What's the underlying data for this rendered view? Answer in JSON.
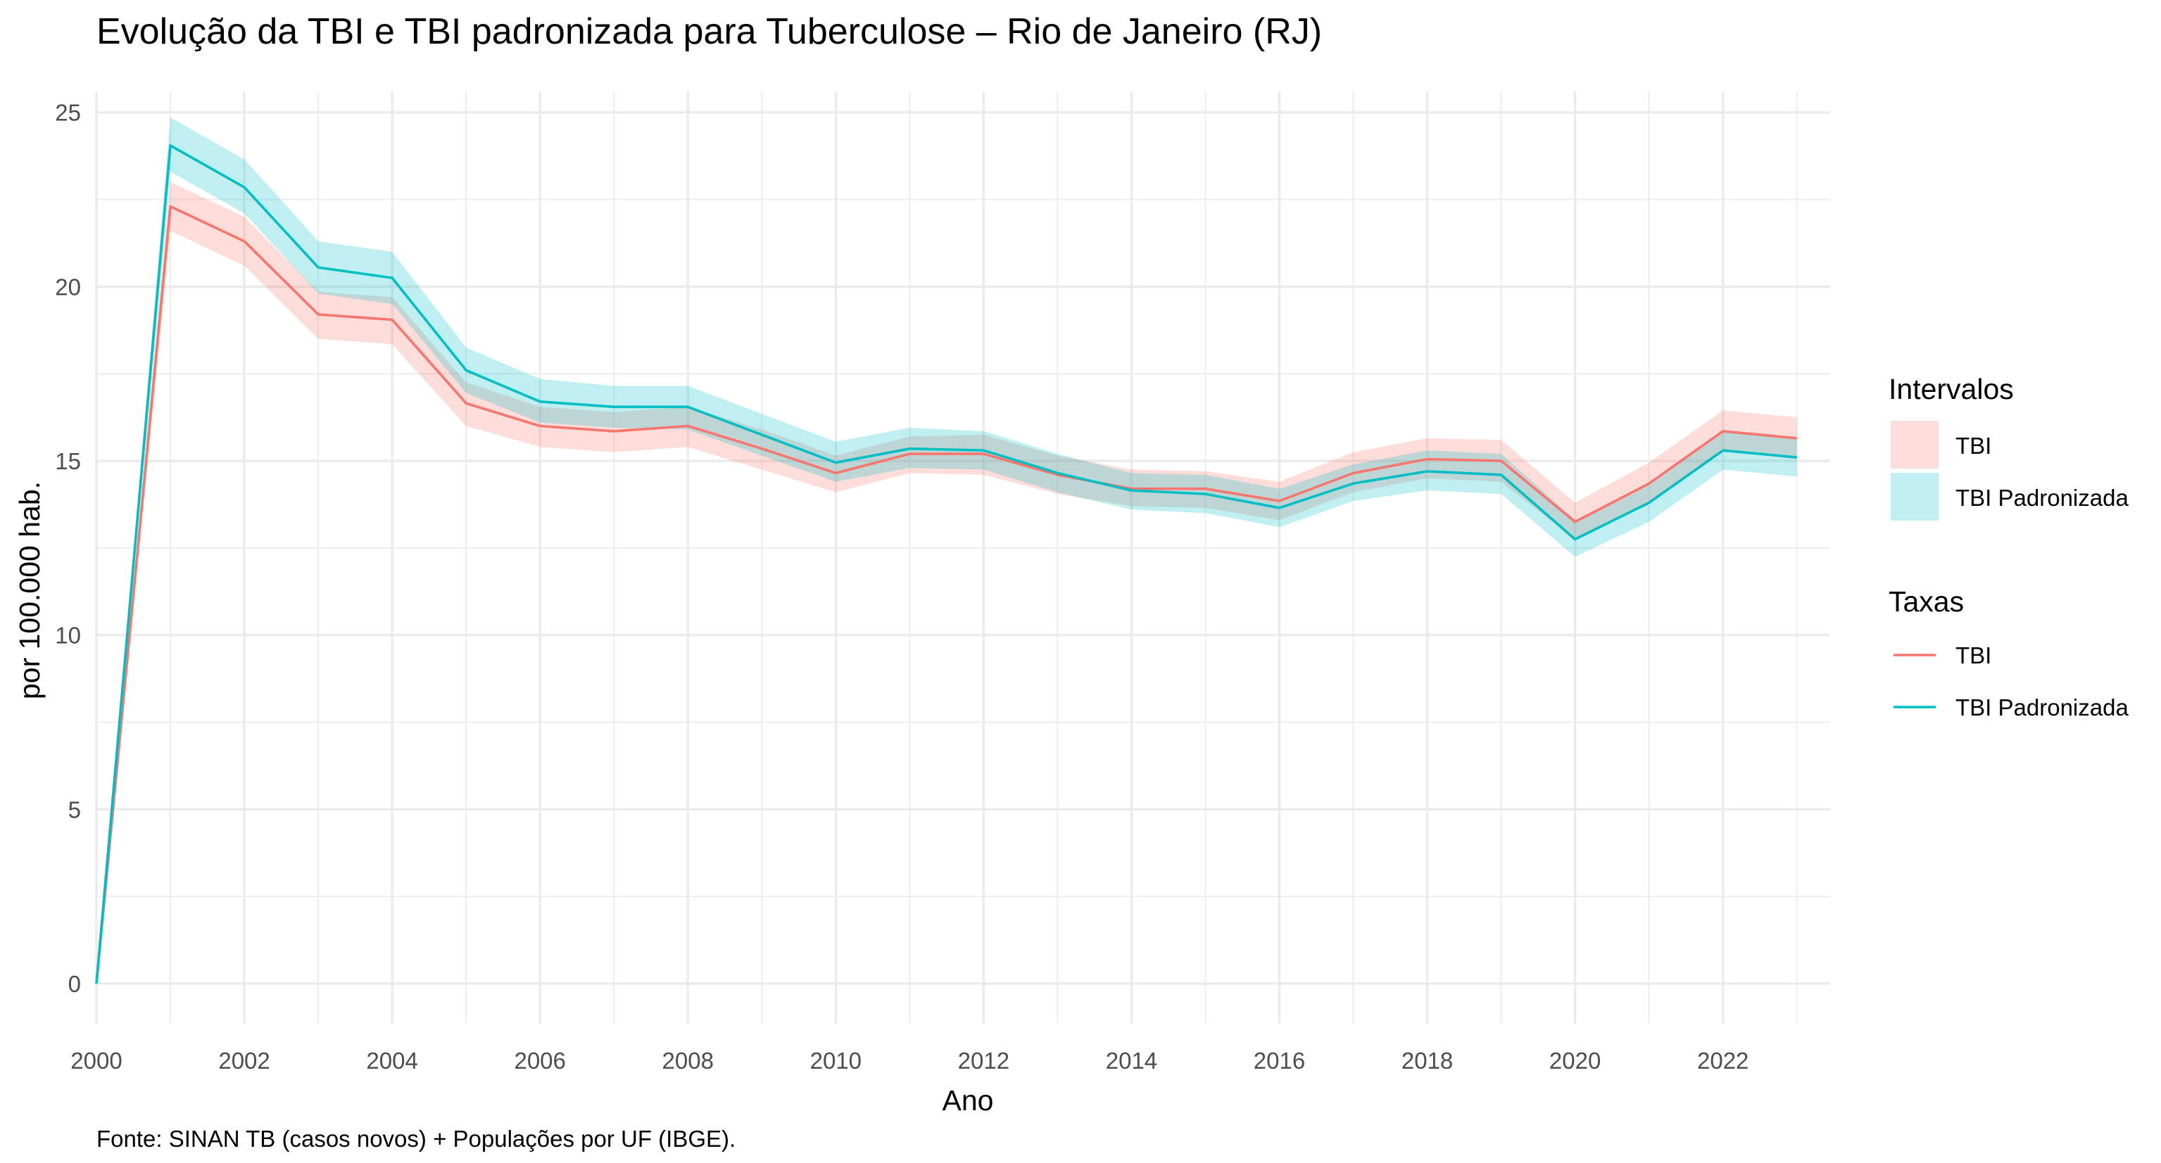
{
  "chart_data": {
    "type": "line",
    "title": "Evolução da TBI e TBI padronizada para Tuberculose – Rio de Janeiro (RJ)",
    "xlabel": "Ano",
    "ylabel": "por 100.000 hab.",
    "caption": "Fonte: SINAN TB (casos novos) + Populações por UF (IBGE).",
    "xlim": [
      2000,
      2023.45
    ],
    "ylim": [
      -1.15,
      25.6
    ],
    "x_ticks": [
      2000,
      2002,
      2004,
      2006,
      2008,
      2010,
      2012,
      2014,
      2016,
      2018,
      2020,
      2022
    ],
    "y_ticks": [
      0,
      5,
      10,
      15,
      20,
      25
    ],
    "grid": true,
    "legend_position": "right",
    "x": [
      2000,
      2001,
      2002,
      2003,
      2004,
      2005,
      2006,
      2007,
      2008,
      2009,
      2010,
      2011,
      2012,
      2013,
      2014,
      2015,
      2016,
      2017,
      2018,
      2019,
      2020,
      2021,
      2022,
      2023
    ],
    "series": [
      {
        "name": "TBI",
        "color": "#F8766D",
        "values": [
          0,
          22.3,
          21.3,
          19.2,
          19.05,
          16.65,
          16.0,
          15.85,
          16.0,
          15.35,
          14.65,
          15.2,
          15.2,
          14.6,
          14.2,
          14.2,
          13.85,
          14.65,
          15.05,
          15.0,
          13.25,
          14.35,
          15.85,
          15.65
        ],
        "lower": [
          0,
          21.6,
          20.6,
          18.5,
          18.35,
          16.0,
          15.4,
          15.25,
          15.4,
          14.75,
          14.1,
          14.65,
          14.6,
          14.05,
          13.7,
          13.65,
          13.3,
          14.1,
          14.5,
          14.4,
          12.75,
          13.75,
          15.3,
          15.05
        ],
        "upper": [
          0,
          23.0,
          22.0,
          19.85,
          19.7,
          17.25,
          16.55,
          16.4,
          16.55,
          15.9,
          15.15,
          15.7,
          15.75,
          15.15,
          14.75,
          14.7,
          14.4,
          15.25,
          15.65,
          15.6,
          13.8,
          14.95,
          16.45,
          16.25
        ]
      },
      {
        "name": "TBI Padronizada",
        "color": "#00BFC4",
        "values": [
          0,
          24.05,
          22.85,
          20.55,
          20.25,
          17.6,
          16.7,
          16.55,
          16.55,
          15.75,
          14.95,
          15.35,
          15.3,
          14.65,
          14.15,
          14.05,
          13.65,
          14.35,
          14.7,
          14.6,
          12.75,
          13.8,
          15.3,
          15.1
        ],
        "lower": [
          0,
          23.3,
          22.1,
          19.8,
          19.5,
          16.95,
          16.1,
          15.95,
          15.9,
          15.15,
          14.4,
          14.8,
          14.75,
          14.1,
          13.6,
          13.5,
          13.1,
          13.85,
          14.15,
          14.05,
          12.25,
          13.25,
          14.75,
          14.55
        ],
        "upper": [
          0,
          24.85,
          23.65,
          21.3,
          21.0,
          18.25,
          17.35,
          17.15,
          17.15,
          16.35,
          15.55,
          15.95,
          15.85,
          15.2,
          14.65,
          14.6,
          14.2,
          14.9,
          15.3,
          15.2,
          13.3,
          14.35,
          15.85,
          15.65
        ]
      }
    ],
    "legend": {
      "intervals_title": "Intervalos",
      "intervals": [
        {
          "label": "TBI",
          "color": "#F8766D"
        },
        {
          "label": "TBI Padronizada",
          "color": "#00BFC4"
        }
      ],
      "rates_title": "Taxas",
      "rates": [
        {
          "label": "TBI",
          "color": "#F8766D"
        },
        {
          "label": "TBI Padronizada",
          "color": "#00BFC4"
        }
      ]
    }
  }
}
